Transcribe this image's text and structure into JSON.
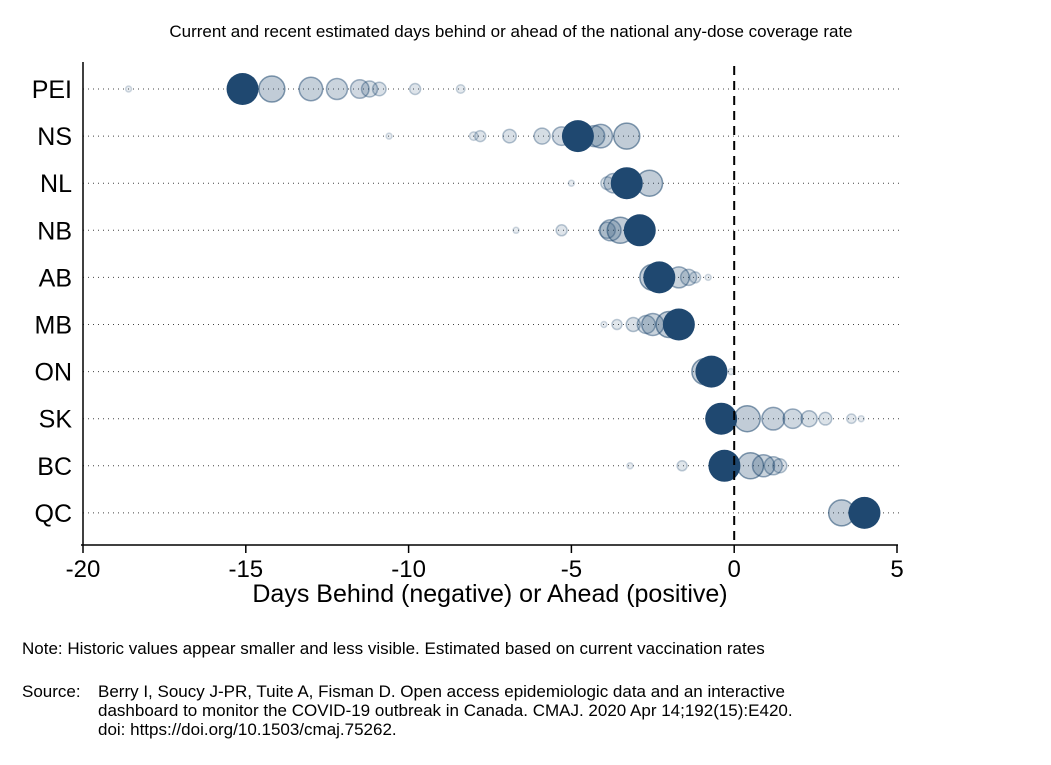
{
  "chart_data": {
    "type": "scatter",
    "title": "Current and recent estimated days behind or ahead of the national any-dose coverage rate",
    "xlabel": "Days Behind (negative) or Ahead (positive)",
    "ylabel": "",
    "xlim": [
      -20,
      5
    ],
    "xticks": [
      -20,
      -15,
      -10,
      -5,
      0,
      5
    ],
    "xtick_labels": [
      "-20",
      "-15",
      "-10",
      "-5",
      "0",
      "5"
    ],
    "reference_line_x": 0,
    "grid": false,
    "legend": "none",
    "colors": {
      "marker": "#1f4870",
      "reference_line": "#000000",
      "row_line": "#444444"
    },
    "categories": [
      "PEI",
      "NS",
      "NL",
      "NB",
      "AB",
      "MB",
      "ON",
      "SK",
      "BC",
      "QC"
    ],
    "series": [
      {
        "category": "PEI",
        "current": -15.1,
        "historic": [
          -14.2,
          -13.0,
          -12.2,
          -11.5,
          -11.2,
          -10.9,
          -9.8,
          -8.4,
          -18.6
        ]
      },
      {
        "category": "NS",
        "current": -4.8,
        "historic": [
          -3.3,
          -4.1,
          -4.3,
          -5.3,
          -5.9,
          -6.9,
          -7.8,
          -8.0,
          -10.6
        ]
      },
      {
        "category": "NL",
        "current": -3.3,
        "historic": [
          -2.6,
          -3.7,
          -3.9,
          -5.0
        ]
      },
      {
        "category": "NB",
        "current": -2.9,
        "historic": [
          -3.5,
          -3.8,
          -3.9,
          -5.3,
          -6.7
        ]
      },
      {
        "category": "AB",
        "current": -2.3,
        "historic": [
          -2.5,
          -1.7,
          -1.4,
          -1.2,
          -0.8
        ]
      },
      {
        "category": "MB",
        "current": -1.7,
        "historic": [
          -2.0,
          -2.5,
          -2.7,
          -3.1,
          -3.6,
          -4.0
        ]
      },
      {
        "category": "ON",
        "current": -0.7,
        "historic": [
          -0.9,
          -0.1
        ]
      },
      {
        "category": "SK",
        "current": -0.4,
        "historic": [
          0.4,
          1.2,
          1.8,
          2.3,
          2.8,
          3.6,
          3.9
        ]
      },
      {
        "category": "BC",
        "current": -0.3,
        "historic": [
          0.5,
          0.9,
          1.2,
          1.4,
          -1.6,
          -3.2
        ]
      },
      {
        "category": "QC",
        "current": 4.0,
        "historic": [
          3.3,
          3.6
        ]
      }
    ]
  },
  "footer": {
    "note": "Note: Historic values appear smaller and less visible. Estimated based on current vaccination rates",
    "source_label": "Source:",
    "source_lines": [
      "Berry I, Soucy J-PR, Tuite A, Fisman D. Open access epidemiologic data and an interactive",
      "dashboard to monitor the COVID-19 outbreak in Canada. CMAJ. 2020 Apr 14;192(15):E420.",
      "doi: https://doi.org/10.1503/cmaj.75262."
    ]
  }
}
